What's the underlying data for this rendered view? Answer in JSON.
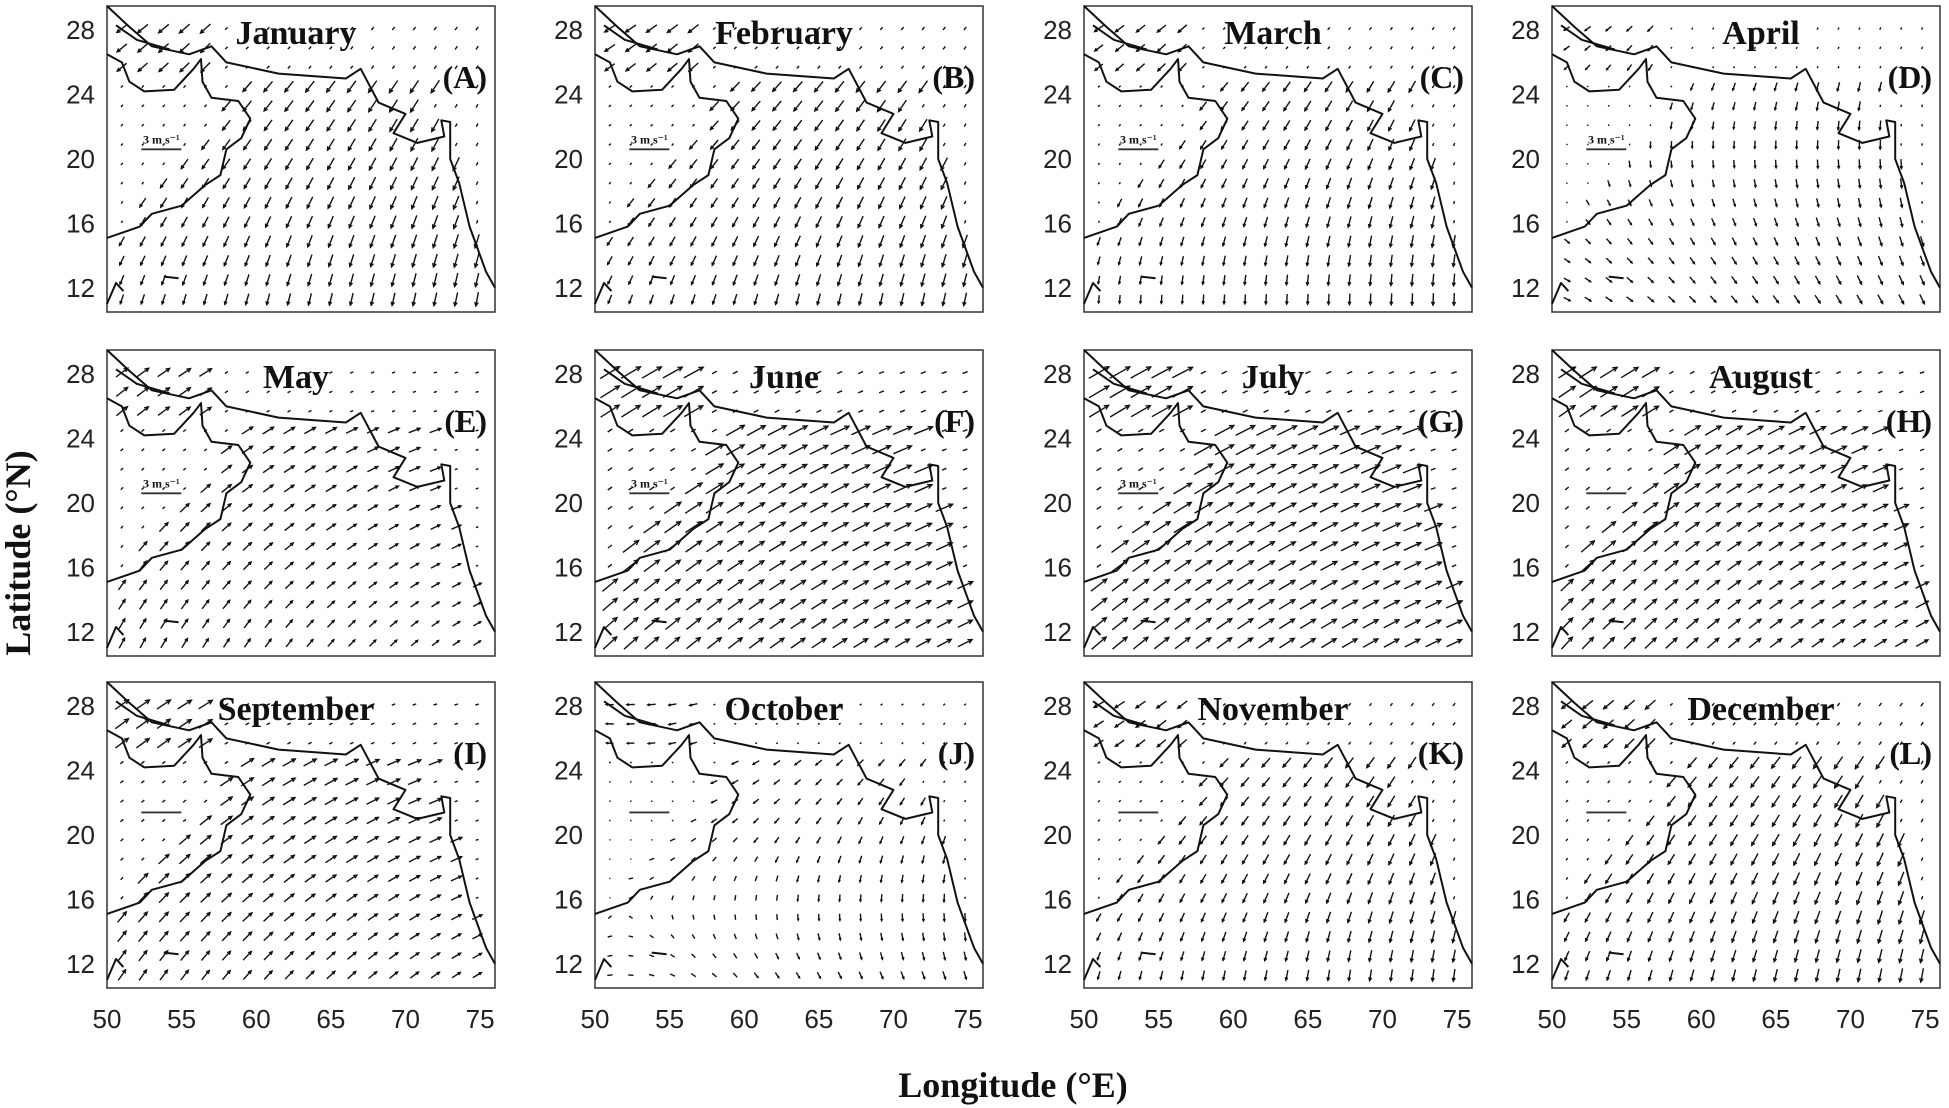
{
  "chart_data": {
    "type": "vector-field",
    "xlabel": "Longitude (°E)",
    "ylabel": "Latitude (°N)",
    "xlim": [
      50,
      76
    ],
    "ylim": [
      10.5,
      29.5
    ],
    "xticks": [
      "50",
      "55",
      "60",
      "65",
      "70",
      "75"
    ],
    "yticks": [
      "12",
      "16",
      "20",
      "24",
      "28"
    ],
    "scale_label": "3 m s⁻¹",
    "panels": [
      {
        "month": "January",
        "label": "(A)",
        "u_scale": -0.5,
        "v_scale": -1.0,
        "shows_scale_text": true
      },
      {
        "month": "February",
        "label": "(B)",
        "u_scale": -0.5,
        "v_scale": -0.9,
        "shows_scale_text": true
      },
      {
        "month": "March",
        "label": "(C)",
        "u_scale": -0.3,
        "v_scale": -0.8,
        "shows_scale_text": true
      },
      {
        "month": "April",
        "label": "(D)",
        "u_scale": 0.1,
        "v_scale": -0.5,
        "shows_scale_text": true
      },
      {
        "month": "May",
        "label": "(E)",
        "u_scale": 0.7,
        "v_scale": 0.5,
        "shows_scale_text": true
      },
      {
        "month": "June",
        "label": "(F)",
        "u_scale": 1.6,
        "v_scale": 0.9,
        "shows_scale_text": true
      },
      {
        "month": "July",
        "label": "(G)",
        "u_scale": 1.7,
        "v_scale": 0.9,
        "shows_scale_text": true
      },
      {
        "month": "August",
        "label": "(H)",
        "u_scale": 1.3,
        "v_scale": 0.8,
        "shows_scale_text": false
      },
      {
        "month": "September",
        "label": "(I)",
        "u_scale": 0.9,
        "v_scale": 0.6,
        "shows_scale_text": false
      },
      {
        "month": "October",
        "label": "(J)",
        "u_scale": -0.1,
        "v_scale": -0.3,
        "shows_scale_text": false
      },
      {
        "month": "November",
        "label": "(K)",
        "u_scale": -0.4,
        "v_scale": -0.8,
        "shows_scale_text": false
      },
      {
        "month": "December",
        "label": "(L)",
        "u_scale": -0.5,
        "v_scale": -1.0,
        "shows_scale_text": false
      }
    ],
    "coastline": [
      [
        [
          50,
          29.5
        ],
        [
          51.5,
          28.2
        ],
        [
          53,
          27
        ],
        [
          55.5,
          26.5
        ],
        [
          57,
          27
        ],
        [
          58,
          26
        ],
        [
          61.5,
          25.3
        ],
        [
          66,
          25
        ],
        [
          67,
          25.6
        ],
        [
          68.2,
          23.5
        ],
        [
          70,
          22.8
        ],
        [
          69.2,
          21.6
        ],
        [
          70.8,
          21
        ],
        [
          72.6,
          21.4
        ],
        [
          72.4,
          22.4
        ],
        [
          73,
          22.3
        ],
        [
          73,
          20
        ],
        [
          73.6,
          18.5
        ],
        [
          74.3,
          15.8
        ],
        [
          75.4,
          13
        ],
        [
          76,
          12
        ]
      ],
      [
        [
          50,
          26.5
        ],
        [
          51,
          26
        ],
        [
          51.5,
          24.8
        ],
        [
          52.5,
          24.2
        ],
        [
          54.5,
          24.3
        ],
        [
          55.8,
          25.6
        ],
        [
          56.3,
          26.2
        ],
        [
          56.4,
          24.8
        ],
        [
          57,
          23.8
        ],
        [
          58.8,
          23.6
        ],
        [
          59.6,
          22.5
        ],
        [
          59,
          21.3
        ],
        [
          58,
          20.6
        ],
        [
          57.6,
          19
        ],
        [
          56.6,
          18.4
        ],
        [
          55,
          17.1
        ],
        [
          53,
          16.6
        ],
        [
          52.2,
          15.8
        ],
        [
          50,
          15.1
        ]
      ],
      [
        [
          50.6,
          28.3
        ],
        [
          52,
          27.4
        ],
        [
          54.2,
          26.8
        ]
      ],
      [
        [
          53.8,
          12.7
        ],
        [
          54.8,
          12.6
        ]
      ],
      [
        [
          50,
          11
        ],
        [
          50.6,
          12.3
        ],
        [
          51.1,
          11.8
        ]
      ]
    ]
  }
}
